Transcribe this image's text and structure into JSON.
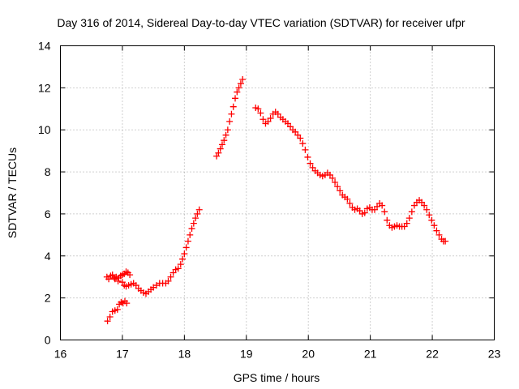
{
  "chart_data": {
    "type": "scatter",
    "title": "Day 316 of 2014, Sidereal Day-to-day VTEC variation (SDTVAR) for receiver ufpr",
    "xlabel": "GPS time / hours",
    "ylabel": "SDTVAR / TECUs",
    "xlim": [
      16,
      23
    ],
    "ylim": [
      0,
      14
    ],
    "xticks": [
      16,
      17,
      18,
      19,
      20,
      21,
      22,
      23
    ],
    "yticks": [
      0,
      2,
      4,
      6,
      8,
      10,
      12,
      14
    ],
    "xtick_labels": [
      "16",
      "17",
      "18",
      "19",
      "20",
      "21",
      "22",
      "23"
    ],
    "ytick_labels": [
      "0",
      "2",
      "4",
      "6",
      "8",
      "10",
      "12",
      "14"
    ],
    "grid": true,
    "marker": "plus",
    "color": "#ff0000",
    "series": [
      {
        "name": "SDTVAR",
        "points": [
          [
            16.76,
            0.9
          ],
          [
            16.8,
            1.1
          ],
          [
            16.84,
            1.35
          ],
          [
            16.88,
            1.4
          ],
          [
            16.92,
            1.45
          ],
          [
            16.95,
            1.7
          ],
          [
            16.98,
            1.8
          ],
          [
            17.01,
            1.75
          ],
          [
            17.04,
            1.85
          ],
          [
            17.07,
            1.75
          ],
          [
            16.75,
            3.0
          ],
          [
            16.78,
            2.9
          ],
          [
            16.81,
            3.05
          ],
          [
            16.84,
            3.1
          ],
          [
            16.87,
            2.95
          ],
          [
            16.9,
            3.0
          ],
          [
            16.94,
            2.95
          ],
          [
            16.97,
            3.05
          ],
          [
            17.0,
            3.1
          ],
          [
            17.03,
            3.15
          ],
          [
            17.06,
            3.25
          ],
          [
            17.09,
            3.2
          ],
          [
            17.12,
            3.1
          ],
          [
            16.88,
            2.9
          ],
          [
            16.93,
            2.8
          ],
          [
            17.0,
            2.75
          ],
          [
            17.03,
            2.6
          ],
          [
            17.06,
            2.55
          ],
          [
            17.1,
            2.6
          ],
          [
            17.14,
            2.65
          ],
          [
            17.18,
            2.7
          ],
          [
            17.22,
            2.6
          ],
          [
            17.26,
            2.45
          ],
          [
            17.3,
            2.35
          ],
          [
            17.34,
            2.25
          ],
          [
            17.38,
            2.2
          ],
          [
            17.42,
            2.3
          ],
          [
            17.46,
            2.4
          ],
          [
            17.5,
            2.5
          ],
          [
            17.55,
            2.6
          ],
          [
            17.6,
            2.7
          ],
          [
            17.65,
            2.7
          ],
          [
            17.7,
            2.7
          ],
          [
            17.74,
            2.8
          ],
          [
            17.78,
            3.0
          ],
          [
            17.82,
            3.2
          ],
          [
            17.86,
            3.35
          ],
          [
            17.9,
            3.4
          ],
          [
            17.94,
            3.6
          ],
          [
            17.97,
            3.85
          ],
          [
            18.0,
            4.1
          ],
          [
            18.03,
            4.4
          ],
          [
            18.06,
            4.7
          ],
          [
            18.09,
            5.0
          ],
          [
            18.12,
            5.3
          ],
          [
            18.15,
            5.55
          ],
          [
            18.18,
            5.8
          ],
          [
            18.21,
            6.0
          ],
          [
            18.24,
            6.2
          ],
          [
            18.52,
            8.75
          ],
          [
            18.55,
            8.9
          ],
          [
            18.58,
            9.1
          ],
          [
            18.61,
            9.3
          ],
          [
            18.64,
            9.5
          ],
          [
            18.67,
            9.75
          ],
          [
            18.7,
            10.0
          ],
          [
            18.73,
            10.4
          ],
          [
            18.76,
            10.75
          ],
          [
            18.79,
            11.1
          ],
          [
            18.82,
            11.5
          ],
          [
            18.85,
            11.8
          ],
          [
            18.88,
            12.0
          ],
          [
            18.91,
            12.2
          ],
          [
            18.94,
            12.4
          ],
          [
            19.15,
            11.05
          ],
          [
            19.19,
            11.0
          ],
          [
            19.23,
            10.8
          ],
          [
            19.27,
            10.5
          ],
          [
            19.31,
            10.3
          ],
          [
            19.35,
            10.4
          ],
          [
            19.39,
            10.55
          ],
          [
            19.43,
            10.75
          ],
          [
            19.47,
            10.85
          ],
          [
            19.51,
            10.75
          ],
          [
            19.55,
            10.6
          ],
          [
            19.59,
            10.5
          ],
          [
            19.63,
            10.4
          ],
          [
            19.67,
            10.3
          ],
          [
            19.71,
            10.15
          ],
          [
            19.75,
            10.0
          ],
          [
            19.79,
            9.9
          ],
          [
            19.83,
            9.75
          ],
          [
            19.87,
            9.6
          ],
          [
            19.91,
            9.35
          ],
          [
            19.95,
            9.05
          ],
          [
            19.99,
            8.7
          ],
          [
            20.03,
            8.4
          ],
          [
            20.07,
            8.2
          ],
          [
            20.11,
            8.05
          ],
          [
            20.15,
            7.95
          ],
          [
            20.19,
            7.85
          ],
          [
            20.23,
            7.8
          ],
          [
            20.27,
            7.85
          ],
          [
            20.31,
            7.95
          ],
          [
            20.35,
            7.85
          ],
          [
            20.39,
            7.7
          ],
          [
            20.43,
            7.5
          ],
          [
            20.47,
            7.3
          ],
          [
            20.51,
            7.1
          ],
          [
            20.55,
            6.9
          ],
          [
            20.59,
            6.8
          ],
          [
            20.63,
            6.7
          ],
          [
            20.67,
            6.5
          ],
          [
            20.71,
            6.3
          ],
          [
            20.75,
            6.2
          ],
          [
            20.79,
            6.25
          ],
          [
            20.83,
            6.15
          ],
          [
            20.87,
            6.0
          ],
          [
            20.91,
            6.05
          ],
          [
            20.95,
            6.25
          ],
          [
            20.99,
            6.3
          ],
          [
            21.03,
            6.2
          ],
          [
            21.07,
            6.2
          ],
          [
            21.11,
            6.35
          ],
          [
            21.15,
            6.5
          ],
          [
            21.19,
            6.4
          ],
          [
            21.23,
            6.1
          ],
          [
            21.27,
            5.7
          ],
          [
            21.31,
            5.45
          ],
          [
            21.35,
            5.35
          ],
          [
            21.39,
            5.4
          ],
          [
            21.43,
            5.45
          ],
          [
            21.47,
            5.4
          ],
          [
            21.51,
            5.4
          ],
          [
            21.55,
            5.4
          ],
          [
            21.59,
            5.55
          ],
          [
            21.63,
            5.8
          ],
          [
            21.67,
            6.1
          ],
          [
            21.71,
            6.4
          ],
          [
            21.75,
            6.55
          ],
          [
            21.79,
            6.65
          ],
          [
            21.83,
            6.55
          ],
          [
            21.87,
            6.4
          ],
          [
            21.91,
            6.2
          ],
          [
            21.95,
            5.95
          ],
          [
            21.99,
            5.7
          ],
          [
            22.03,
            5.45
          ],
          [
            22.07,
            5.2
          ],
          [
            22.11,
            5.0
          ],
          [
            22.15,
            4.8
          ],
          [
            22.18,
            4.7
          ],
          [
            22.21,
            4.7
          ]
        ]
      }
    ]
  }
}
